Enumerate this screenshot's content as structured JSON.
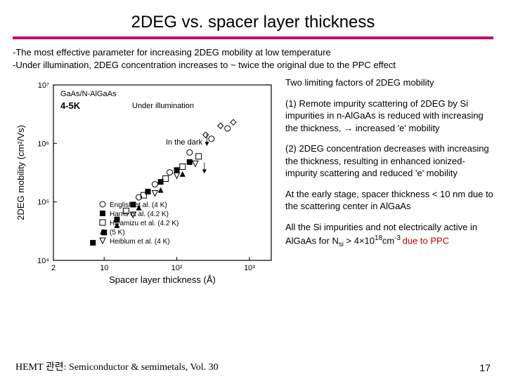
{
  "title": "2DEG vs. spacer layer thickness",
  "bullets": {
    "line1": "-The most effective parameter for increasing 2DEG mobility at low temperature",
    "line2": "-Under illumination, 2DEG concentration increases to ~ twice the original due to the PPC effect"
  },
  "chart": {
    "type": "scatter-loglog",
    "xlabel": "Spacer layer thickness (Å)",
    "ylabel": "2DEG mobility (cm²/Vs)",
    "xlim": [
      2,
      2000
    ],
    "ylim": [
      10000.0,
      10000000.0
    ],
    "xticks": [
      2,
      10,
      100,
      1000
    ],
    "xtick_labels": [
      "2",
      "10",
      "10²",
      "10³"
    ],
    "yticks": [
      10000.0,
      100000.0,
      1000000.0,
      10000000.0
    ],
    "ytick_labels": [
      "10⁴",
      "10⁵",
      "10⁶",
      "10⁷"
    ],
    "temp_label": "4-5K",
    "system_label": "GaAs/N-AlGaAs",
    "annotations": {
      "under_illum": "Under illumination",
      "in_dark": "In the dark"
    },
    "legend": [
      {
        "marker": "open-circle",
        "label": "English et al.  (4 K)"
      },
      {
        "marker": "filled-square",
        "label": "Harris et al.  (4.2 K)"
      },
      {
        "marker": "open-square",
        "label": "Hiyamizu et al. (4.2 K)"
      },
      {
        "marker": "filled-tri",
        "label": "(5 K)"
      },
      {
        "marker": "open-tri",
        "label": "Heiblum et al. (4 K)"
      }
    ],
    "series": [
      {
        "marker": "filled-square",
        "points": [
          [
            7,
            20000.0
          ],
          [
            10,
            30000.0
          ],
          [
            15,
            50000.0
          ],
          [
            25,
            90000.0
          ],
          [
            40,
            150000.0
          ],
          [
            60,
            220000.0
          ],
          [
            100,
            350000.0
          ],
          [
            150,
            480000.0
          ]
        ]
      },
      {
        "marker": "open-circle",
        "points": [
          [
            30,
            120000.0
          ],
          [
            50,
            200000.0
          ],
          [
            80,
            320000.0
          ],
          [
            150,
            700000.0
          ],
          [
            300,
            1200000.0
          ],
          [
            500,
            1800000.0
          ]
        ]
      },
      {
        "marker": "open-square",
        "points": [
          [
            20,
            70000.0
          ],
          [
            35,
            130000.0
          ],
          [
            70,
            250000.0
          ],
          [
            120,
            400000.0
          ],
          [
            200,
            600000.0
          ]
        ]
      },
      {
        "marker": "filled-tri",
        "points": [
          [
            15,
            40000.0
          ],
          [
            30,
            80000.0
          ],
          [
            60,
            160000.0
          ],
          [
            120,
            300000.0
          ]
        ]
      },
      {
        "marker": "open-tri",
        "points": [
          [
            25,
            60000.0
          ],
          [
            50,
            140000.0
          ],
          [
            100,
            280000.0
          ],
          [
            180,
            450000.0
          ]
        ]
      },
      {
        "marker": "open-diamond",
        "points": [
          [
            250,
            1400000.0
          ],
          [
            400,
            2000000.0
          ],
          [
            600,
            2300000.0
          ]
        ]
      }
    ],
    "colors": {
      "axis": "#000000",
      "marker_fill": "#000000",
      "marker_stroke": "#000000",
      "bg": "#ffffff"
    },
    "marker_size": 4
  },
  "right": {
    "heading": "Two limiting factors of 2DEG mobility",
    "p1_lead": "(1) ",
    "p1_body": "Remote impurity scattering of 2DEG by Si impurities in n-AlGaAs is reduced with increasing the thickness, → increased 'e' mobility",
    "p2_lead": "(2) ",
    "p2_body": "2DEG concentration decreases with increasing the thickness, resulting in enhanced ionized-impurity scattering and reduced 'e' mobility",
    "p3": "At the early stage, spacer thickness < 10 nm due to the scattering center in AlGaAs",
    "p4_pre": "All the Si impurities and not electrically active in AlGaAs for N",
    "p4_sub": "si",
    "p4_mid": " > 4×10",
    "p4_sup": "18",
    "p4_unit": "cm",
    "p4_unitexp": "-3 ",
    "p4_red": "due to PPC"
  },
  "footer": {
    "left": "HEMT 관련: Semiconductor & semimetals, Vol. 30",
    "page": "17"
  }
}
